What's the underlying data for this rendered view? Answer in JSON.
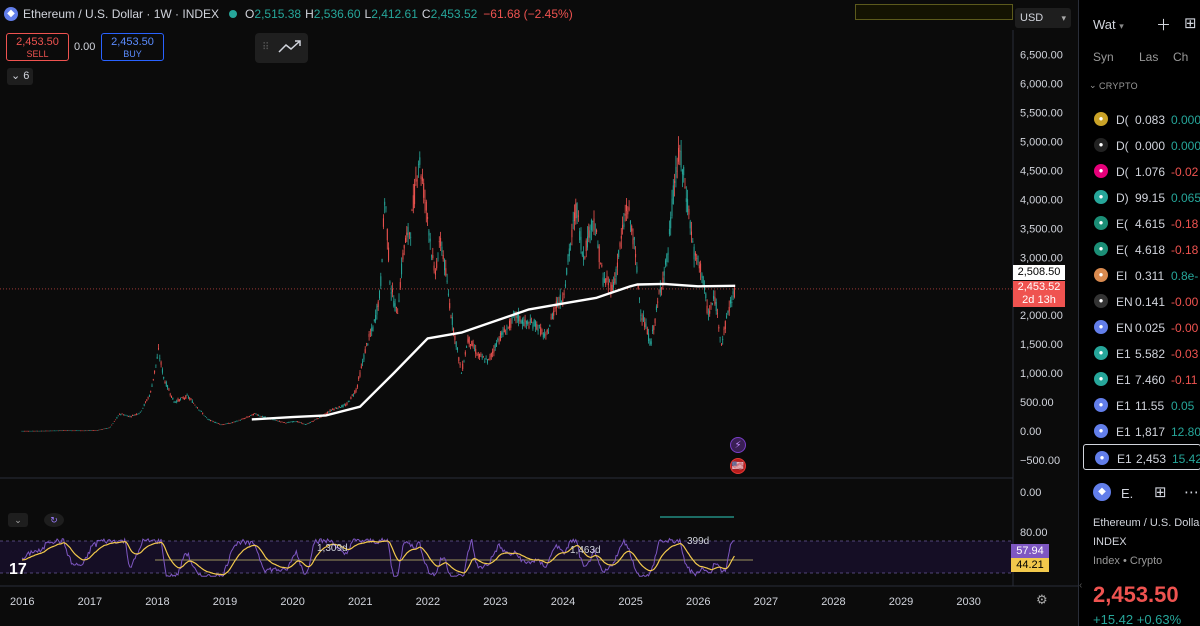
{
  "header": {
    "title": "Ethereum / U.S. Dollar · 1W · INDEX",
    "ohlc": [
      {
        "label": "O",
        "value": "2,515.38",
        "dir": "up"
      },
      {
        "label": "H",
        "value": "2,536.60",
        "dir": "up"
      },
      {
        "label": "L",
        "value": "2,412.61",
        "dir": "up"
      },
      {
        "label": "C",
        "value": "2,453.52",
        "dir": "up"
      },
      {
        "label": "",
        "value": "−61.68 (−2.45%)",
        "dir": "down"
      }
    ]
  },
  "trade": {
    "sell_price": "2,453.50",
    "sell_label": "SELL",
    "spread": "0.00",
    "buy_price": "2,453.50",
    "buy_label": "BUY"
  },
  "indicators_collapsed_count": "6",
  "currency": "USD",
  "chart_data": {
    "type": "candlestick",
    "symbol": "ETHUSD",
    "interval": "1W",
    "x_ticks": [
      "2016",
      "2017",
      "2018",
      "2019",
      "2020",
      "2021",
      "2022",
      "2023",
      "2024",
      "2025",
      "2026",
      "2027",
      "2028",
      "2029",
      "2030"
    ],
    "y_ticks": [
      "6,500.00",
      "6,000.00",
      "5,500.00",
      "5,000.00",
      "4,500.00",
      "4,000.00",
      "3,500.00",
      "3,000.00",
      "2,500.00",
      "2,000.00",
      "1,500.00",
      "1,000.00",
      "500.00",
      "0.00",
      "−500.00"
    ],
    "ylim": [
      -500,
      6500
    ],
    "price_series": [
      [
        2016.0,
        1
      ],
      [
        2016.3,
        3
      ],
      [
        2016.6,
        10
      ],
      [
        2016.9,
        8
      ],
      [
        2017.1,
        12
      ],
      [
        2017.3,
        60
      ],
      [
        2017.45,
        300
      ],
      [
        2017.6,
        250
      ],
      [
        2017.75,
        320
      ],
      [
        2017.9,
        650
      ],
      [
        2018.02,
        1380
      ],
      [
        2018.1,
        900
      ],
      [
        2018.25,
        500
      ],
      [
        2018.45,
        600
      ],
      [
        2018.6,
        400
      ],
      [
        2018.75,
        200
      ],
      [
        2018.95,
        110
      ],
      [
        2019.1,
        140
      ],
      [
        2019.3,
        220
      ],
      [
        2019.45,
        300
      ],
      [
        2019.55,
        250
      ],
      [
        2019.7,
        200
      ],
      [
        2019.9,
        140
      ],
      [
        2020.05,
        170
      ],
      [
        2020.2,
        110
      ],
      [
        2020.4,
        230
      ],
      [
        2020.6,
        380
      ],
      [
        2020.8,
        450
      ],
      [
        2020.95,
        730
      ],
      [
        2021.1,
        1500
      ],
      [
        2021.2,
        1800
      ],
      [
        2021.3,
        2400
      ],
      [
        2021.37,
        4100
      ],
      [
        2021.45,
        2500
      ],
      [
        2021.55,
        2000
      ],
      [
        2021.65,
        3200
      ],
      [
        2021.75,
        3500
      ],
      [
        2021.87,
        4750
      ],
      [
        2022.0,
        3700
      ],
      [
        2022.1,
        2700
      ],
      [
        2022.2,
        3300
      ],
      [
        2022.35,
        2000
      ],
      [
        2022.5,
        1000
      ],
      [
        2022.6,
        1600
      ],
      [
        2022.75,
        1300
      ],
      [
        2022.9,
        1200
      ],
      [
        2023.05,
        1600
      ],
      [
        2023.2,
        1800
      ],
      [
        2023.3,
        2000
      ],
      [
        2023.45,
        1850
      ],
      [
        2023.6,
        1850
      ],
      [
        2023.75,
        1600
      ],
      [
        2023.9,
        2200
      ],
      [
        2024.0,
        2300
      ],
      [
        2024.2,
        3900
      ],
      [
        2024.3,
        3000
      ],
      [
        2024.45,
        3700
      ],
      [
        2024.6,
        2600
      ],
      [
        2024.75,
        2500
      ],
      [
        2024.95,
        3900
      ],
      [
        2025.05,
        3300
      ],
      [
        2025.15,
        2100
      ],
      [
        2025.3,
        1500
      ],
      [
        2025.45,
        2500
      ],
      [
        2025.55,
        3000
      ],
      [
        2025.65,
        4300
      ],
      [
        2025.73,
        4800
      ],
      [
        2025.85,
        3900
      ],
      [
        2025.95,
        3000
      ],
      [
        2026.05,
        2800
      ],
      [
        2026.15,
        2000
      ],
      [
        2026.25,
        2300
      ],
      [
        2026.35,
        1500
      ],
      [
        2026.45,
        2100
      ],
      [
        2026.55,
        2450
      ]
    ],
    "sma_series": [
      [
        2019.4,
        200
      ],
      [
        2020.0,
        240
      ],
      [
        2020.5,
        270
      ],
      [
        2021.0,
        420
      ],
      [
        2021.5,
        1000
      ],
      [
        2022.0,
        1600
      ],
      [
        2022.5,
        1700
      ],
      [
        2023.0,
        1900
      ],
      [
        2023.5,
        2100
      ],
      [
        2024.0,
        2200
      ],
      [
        2024.5,
        2300
      ],
      [
        2025.0,
        2500
      ],
      [
        2025.1,
        2530
      ],
      [
        2025.5,
        2540
      ],
      [
        2026.0,
        2500
      ],
      [
        2026.55,
        2508.5
      ]
    ],
    "price_label": "2,453.52",
    "price_countdown": "2d 13h",
    "sma_label": "2,508.50",
    "rsi": {
      "ticks": [
        "80.00",
        "0.00"
      ],
      "value_label": "57.94",
      "ma_label": "44.21",
      "annotations": [
        "1,309d",
        "1,463d",
        "399d"
      ]
    }
  },
  "events": {
    "flash_icon": "⚡",
    "flag_icon": "🇺🇸"
  },
  "watchlist": {
    "title": "Wat",
    "columns": [
      "Syn",
      "Las",
      "Ch"
    ],
    "section": "CRYPTO",
    "rows": [
      {
        "sym": "D(",
        "last": "0.083",
        "chg": "0.000",
        "dir": "up",
        "icon_color": "#c9a227"
      },
      {
        "sym": "D(",
        "last": "0.000",
        "chg": "0.000",
        "dir": "up",
        "icon_color": "#222222"
      },
      {
        "sym": "D(",
        "last": "1.076",
        "chg": "-0.02",
        "dir": "down",
        "icon_color": "#e6007a"
      },
      {
        "sym": "D)",
        "last": "99.15",
        "chg": "0.065",
        "dir": "up",
        "icon_color": "#26a69a"
      },
      {
        "sym": "E(",
        "last": "4.615",
        "chg": "-0.18",
        "dir": "down",
        "icon_color": "#1b8e76"
      },
      {
        "sym": "E(",
        "last": "4.618",
        "chg": "-0.18",
        "dir": "down",
        "icon_color": "#1b8e76"
      },
      {
        "sym": "EI",
        "last": "0.311",
        "chg": "0.8e-",
        "dir": "up",
        "icon_color": "#d98a4f"
      },
      {
        "sym": "EN",
        "last": "0.141",
        "chg": "-0.00",
        "dir": "down",
        "icon_color": "#333333"
      },
      {
        "sym": "EN",
        "last": "0.025",
        "chg": "-0.00",
        "dir": "down",
        "icon_color": "#627eea"
      },
      {
        "sym": "E1",
        "last": "5.582",
        "chg": "-0.03",
        "dir": "down",
        "icon_color": "#26a69a"
      },
      {
        "sym": "E1",
        "last": "7.460",
        "chg": "-0.11",
        "dir": "down",
        "icon_color": "#26a69a"
      },
      {
        "sym": "E1",
        "last": "11.55",
        "chg": "0.05",
        "dir": "up",
        "icon_color": "#627eea"
      },
      {
        "sym": "E1",
        "last": "1,817",
        "chg": "12.80",
        "dir": "up",
        "icon_color": "#627eea"
      },
      {
        "sym": "E1",
        "last": "2,453",
        "chg": "15.42",
        "dir": "up",
        "icon_color": "#627eea",
        "active": true
      }
    ]
  },
  "details": {
    "sym": "E.",
    "name": "Ethereum / U.S. Dollar",
    "exchange": "INDEX",
    "type": "Index • Crypto",
    "price": "2,453.50",
    "change": "+15.42  +0.63%"
  }
}
